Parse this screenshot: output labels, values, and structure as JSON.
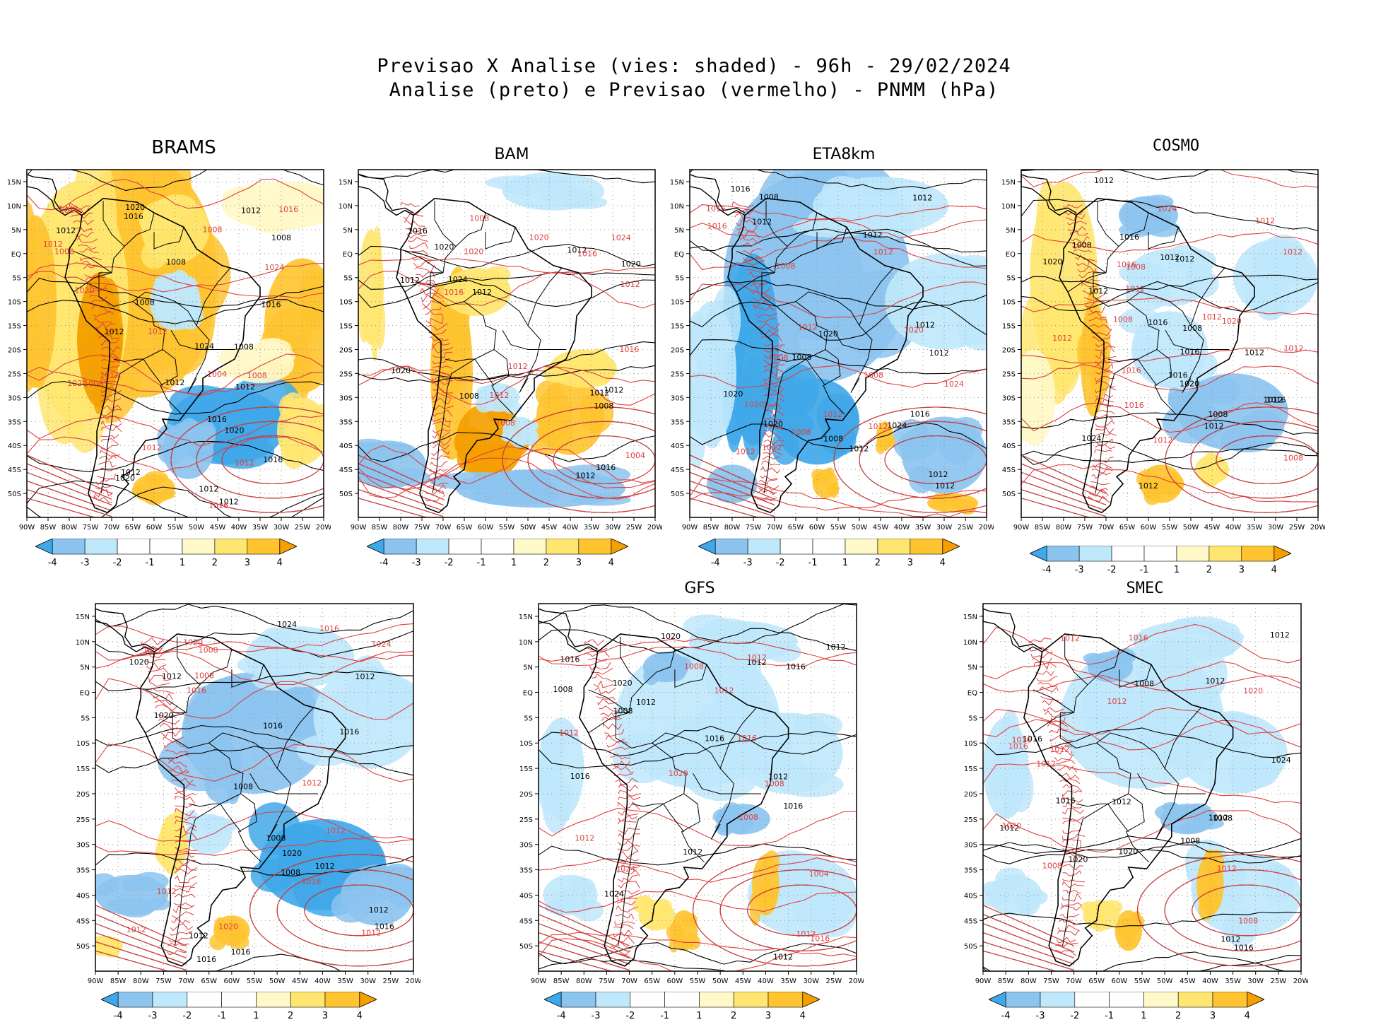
{
  "title": {
    "line1": "Previsao X Analise (vies: shaded) - 96h - 29/02/2024",
    "line2": "Analise (preto) e Previsao (vermelho) - PNMM (hPa)"
  },
  "colors": {
    "neg4": "#3fa8ea",
    "neg3": "#8cc4f0",
    "neg2": "#bfe8fb",
    "neg1": "#ffffff",
    "pos1": "#fff8c8",
    "pos2": "#ffe670",
    "pos3": "#ffc430",
    "pos4": "#f5a000",
    "analysis": "#000000",
    "forecast": "#e04040"
  },
  "axes": {
    "lon_labels": [
      "90W",
      "85W",
      "80W",
      "75W",
      "70W",
      "65W",
      "60W",
      "55W",
      "50W",
      "45W",
      "40W",
      "35W",
      "30W",
      "25W",
      "20W"
    ],
    "lat_labels": [
      "15N",
      "10N",
      "5N",
      "EQ",
      "5S",
      "10S",
      "15S",
      "20S",
      "25S",
      "30S",
      "35S",
      "40S",
      "45S",
      "50S"
    ]
  },
  "colorbar": {
    "labels": [
      "-4",
      "-3",
      "-2",
      "-1",
      "1",
      "2",
      "3",
      "4"
    ]
  },
  "panels": [
    {
      "id": "brams",
      "name": "BRAMS",
      "bias": "warm",
      "isobars_black": [
        "1012",
        "1016",
        "1012",
        "1008",
        "1008",
        "1012",
        "1012",
        "1012",
        "1016",
        "1020",
        "1016",
        "1020",
        "1024",
        "1020",
        "1016",
        "1008",
        "1012",
        "1012",
        "1008",
        "1012"
      ],
      "isobars_red": [
        "1012",
        "1016",
        "1008",
        "1008",
        "1012",
        "1012",
        "1016",
        "1012",
        "1020",
        "1008",
        "1008",
        "1012",
        "1024",
        "1016",
        "1020",
        "1008",
        "1004"
      ]
    },
    {
      "id": "bam",
      "name": "BAM",
      "bias": "warm-south",
      "isobars_black": [
        "1012",
        "1016",
        "1012",
        "1012",
        "1016",
        "1012",
        "1008",
        "1012",
        "1020",
        "1020",
        "1024",
        "1012",
        "1020",
        "1008"
      ],
      "isobars_red": [
        "1016",
        "1012",
        "1008",
        "1016",
        "1012",
        "1020",
        "1024",
        "1016",
        "1012",
        "1020",
        "1004",
        "1008"
      ]
    },
    {
      "id": "eta8km",
      "name": "ETA8km",
      "bias": "cold",
      "isobars_black": [
        "1016",
        "1016",
        "1012",
        "1008",
        "1012",
        "1012",
        "1012",
        "1008",
        "1012",
        "1020",
        "1024",
        "1012",
        "1012",
        "1020",
        "1020",
        "1012",
        "1008"
      ],
      "isobars_red": [
        "1012",
        "1016",
        "1012",
        "1012",
        "1008",
        "1008",
        "1012",
        "1012",
        "1008",
        "1020",
        "1020",
        "1024",
        "1016",
        "1008",
        "1012"
      ]
    },
    {
      "id": "cosmo",
      "name": "COSMO",
      "bias": "mixed",
      "isobars_black": [
        "1012",
        "1016",
        "1012",
        "1008",
        "1008",
        "1012",
        "1016",
        "1012",
        "1016",
        "1012",
        "1008",
        "1012",
        "1016",
        "1020",
        "1024",
        "1012",
        "1012",
        "1016",
        "1020"
      ],
      "isobars_red": [
        "1016",
        "1012",
        "1008",
        "1012",
        "1012",
        "1012",
        "1008",
        "1016",
        "1020",
        "1012",
        "1024",
        "1016",
        "1008",
        "1012",
        "1012"
      ]
    },
    {
      "id": "panel5",
      "name": "",
      "bias": "cold-mixed",
      "isobars_black": [
        "1016",
        "1016",
        "1012",
        "1012",
        "1008",
        "1016",
        "1012",
        "1020",
        "1016",
        "1012",
        "1008",
        "1016",
        "1020",
        "1024",
        "1012",
        "1008",
        "1020"
      ],
      "isobars_red": [
        "1016",
        "1012",
        "1012",
        "1012",
        "1008",
        "1012",
        "1016",
        "1016",
        "1020",
        "1012",
        "1008",
        "1012",
        "1024",
        "1020"
      ]
    },
    {
      "id": "gfs",
      "name": "GFS",
      "bias": "cold-light",
      "isobars_black": [
        "1016",
        "1012",
        "1016",
        "1012",
        "1008",
        "1016",
        "1012",
        "1012",
        "1016",
        "1008",
        "1012",
        "1020",
        "1012",
        "1024",
        "1020",
        "1016"
      ],
      "isobars_red": [
        "1016",
        "1012",
        "1008",
        "1012",
        "1008",
        "1016",
        "1020",
        "1012",
        "1004",
        "1024",
        "1008",
        "1012",
        "1012"
      ]
    },
    {
      "id": "smec",
      "name": "SMEC",
      "bias": "cold-light",
      "isobars_black": [
        "1016",
        "1012",
        "1016",
        "1008",
        "1012",
        "1016",
        "1012",
        "1008",
        "1012",
        "1020",
        "1012",
        "1024",
        "1020",
        "1012",
        "1008"
      ],
      "isobars_red": [
        "1016",
        "1012",
        "1012",
        "1012",
        "1008",
        "1016",
        "1020",
        "1012",
        "1020",
        "1008",
        "1012",
        "1016"
      ]
    }
  ]
}
